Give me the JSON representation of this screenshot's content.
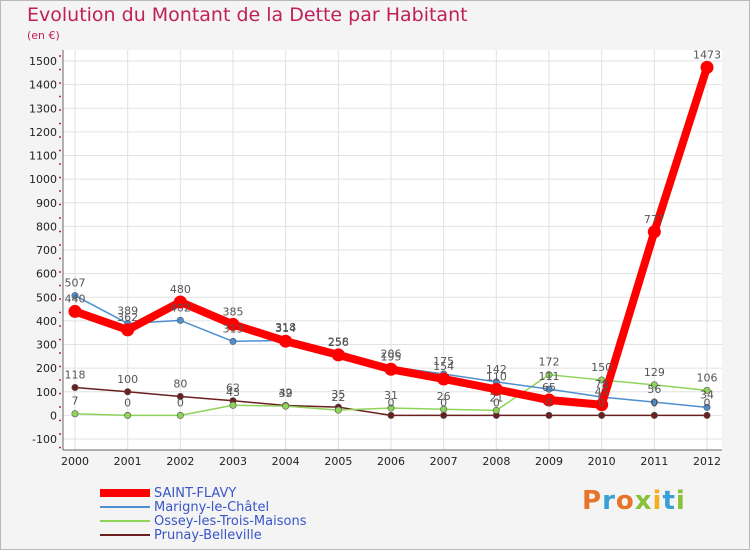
{
  "title": "Evolution du Montant de la Dette par Habitant",
  "subtitle": "(en €)",
  "logo": "Proxiti",
  "logo_colors": [
    "#e8742a",
    "#3aa0d8",
    "#e8742a",
    "#88c23a",
    "#f0b020",
    "#3aa0d8",
    "#88c23a"
  ],
  "chart_data": {
    "type": "line",
    "title": "Evolution du Montant de la Dette par Habitant",
    "ylabel": "(en €)",
    "xlabel": "",
    "x": [
      "2000",
      "2001",
      "2002",
      "2003",
      "2004",
      "2005",
      "2006",
      "2007",
      "2008",
      "2009",
      "2010",
      "2011",
      "2012"
    ],
    "ylim": [
      -100,
      1500
    ],
    "yticks": [
      -100,
      0,
      100,
      200,
      300,
      400,
      500,
      600,
      700,
      800,
      900,
      1000,
      1100,
      1200,
      1300,
      1400,
      1500
    ],
    "grid": true,
    "legend": "bottom",
    "series": [
      {
        "name": "SAINT-FLAVY",
        "color": "#ff0000",
        "values": [
          440,
          362,
          480,
          385,
          314,
          256,
          195,
          154,
          110,
          65,
          45,
          777,
          1473
        ],
        "labels": [
          "440",
          "362",
          "480",
          "385",
          "314",
          "256",
          "195",
          "154",
          "110",
          "65",
          "45",
          "777",
          "1473"
        ]
      },
      {
        "name": "Marigny-le-Châtel",
        "color": "#4d8fcf",
        "values": [
          507,
          389,
          402,
          313,
          318,
          258,
          206,
          175,
          142,
          111,
          78,
          56,
          34
        ],
        "labels": [
          "507",
          "389",
          "402",
          "313",
          "318",
          "258",
          "206",
          "175",
          "142",
          "111",
          "78",
          "56",
          "34"
        ]
      },
      {
        "name": "Ossey-les-Trois-Maisons",
        "color": "#8fd45a",
        "values": [
          7,
          0,
          0,
          43,
          39,
          22,
          31,
          26,
          21,
          172,
          150,
          129,
          106
        ],
        "labels": [
          "7",
          "0",
          "0",
          "43",
          "39",
          "22",
          "31",
          "26",
          "21",
          "172",
          "150",
          "129",
          "106"
        ]
      },
      {
        "name": "Prunay-Belleville",
        "color": "#6b1f1f",
        "values": [
          118,
          100,
          80,
          62,
          42,
          35,
          0,
          0,
          0,
          0,
          0,
          0,
          0
        ],
        "labels": [
          "118",
          "100",
          "80",
          "62",
          "42",
          "35",
          "0",
          "0",
          "0",
          "0",
          "0",
          "0",
          "0"
        ]
      }
    ]
  }
}
